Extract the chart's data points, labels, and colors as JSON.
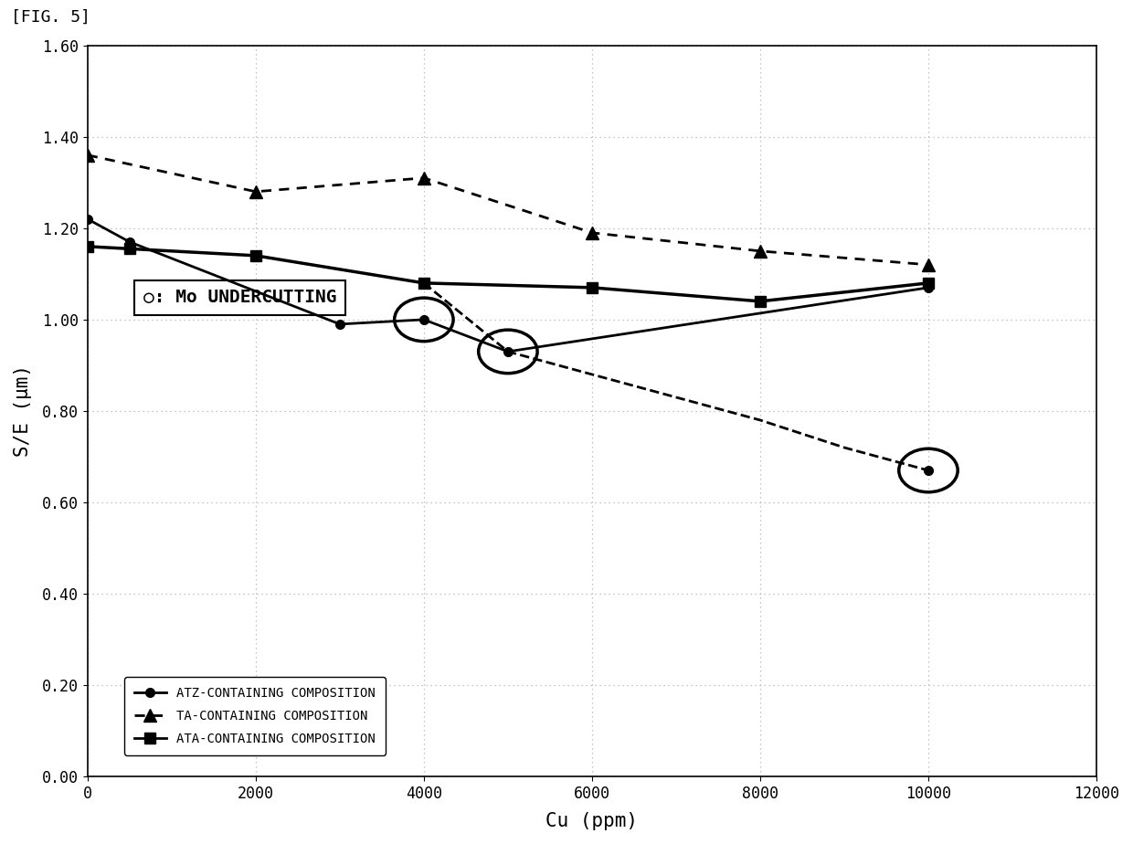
{
  "title": "[FIG. 5]",
  "xlabel": "Cu (ppm)",
  "ylabel": "S/E (μm)",
  "xlim": [
    0,
    12000
  ],
  "ylim": [
    0.0,
    1.6
  ],
  "yticks": [
    0.0,
    0.2,
    0.4,
    0.6,
    0.8,
    1.0,
    1.2,
    1.4,
    1.6
  ],
  "xticks": [
    0,
    2000,
    4000,
    6000,
    8000,
    10000,
    12000
  ],
  "background_color": "#ffffff",
  "plot_bg_color": "#ffffff",
  "grid_color": "#aaaaaa",
  "atz_x": [
    0,
    500,
    3000,
    4000,
    5000,
    10000
  ],
  "atz_y": [
    1.22,
    1.17,
    0.99,
    1.0,
    0.93,
    1.07
  ],
  "atz_trend_x": [
    0,
    10000
  ],
  "atz_trend_y": [
    1.175,
    1.07
  ],
  "ta_x": [
    0,
    2000,
    4000,
    6000,
    8000,
    10000
  ],
  "ta_y": [
    1.36,
    1.28,
    1.31,
    1.19,
    1.15,
    1.12
  ],
  "ata_x": [
    0,
    500,
    2000,
    4000,
    6000,
    8000,
    10000
  ],
  "ata_y": [
    1.16,
    1.155,
    1.14,
    1.08,
    1.07,
    1.04,
    1.08
  ],
  "ata_dash_x": [
    4000,
    5000,
    6000,
    8000,
    9000,
    10000
  ],
  "ata_dash_y": [
    1.08,
    0.93,
    0.88,
    0.78,
    0.72,
    0.67
  ],
  "undercut_points": [
    [
      4000,
      1.0
    ],
    [
      5000,
      0.93
    ],
    [
      10000,
      0.67
    ]
  ],
  "circle_xwidth": 700,
  "circle_yheight": 0.095,
  "legend_labels": [
    "ATZ-CONTAINING COMPOSITION",
    "TA-CONTAINING COMPOSITION",
    "ATA-CONTAINING COMPOSITION"
  ],
  "legend_markers": [
    "o",
    "^",
    "s"
  ],
  "annot_text": "○: Mo UNDERCUTTING",
  "title_fontsize": 13,
  "axis_label_fontsize": 15,
  "tick_fontsize": 12,
  "legend_fontsize": 10,
  "annot_fontsize": 14
}
